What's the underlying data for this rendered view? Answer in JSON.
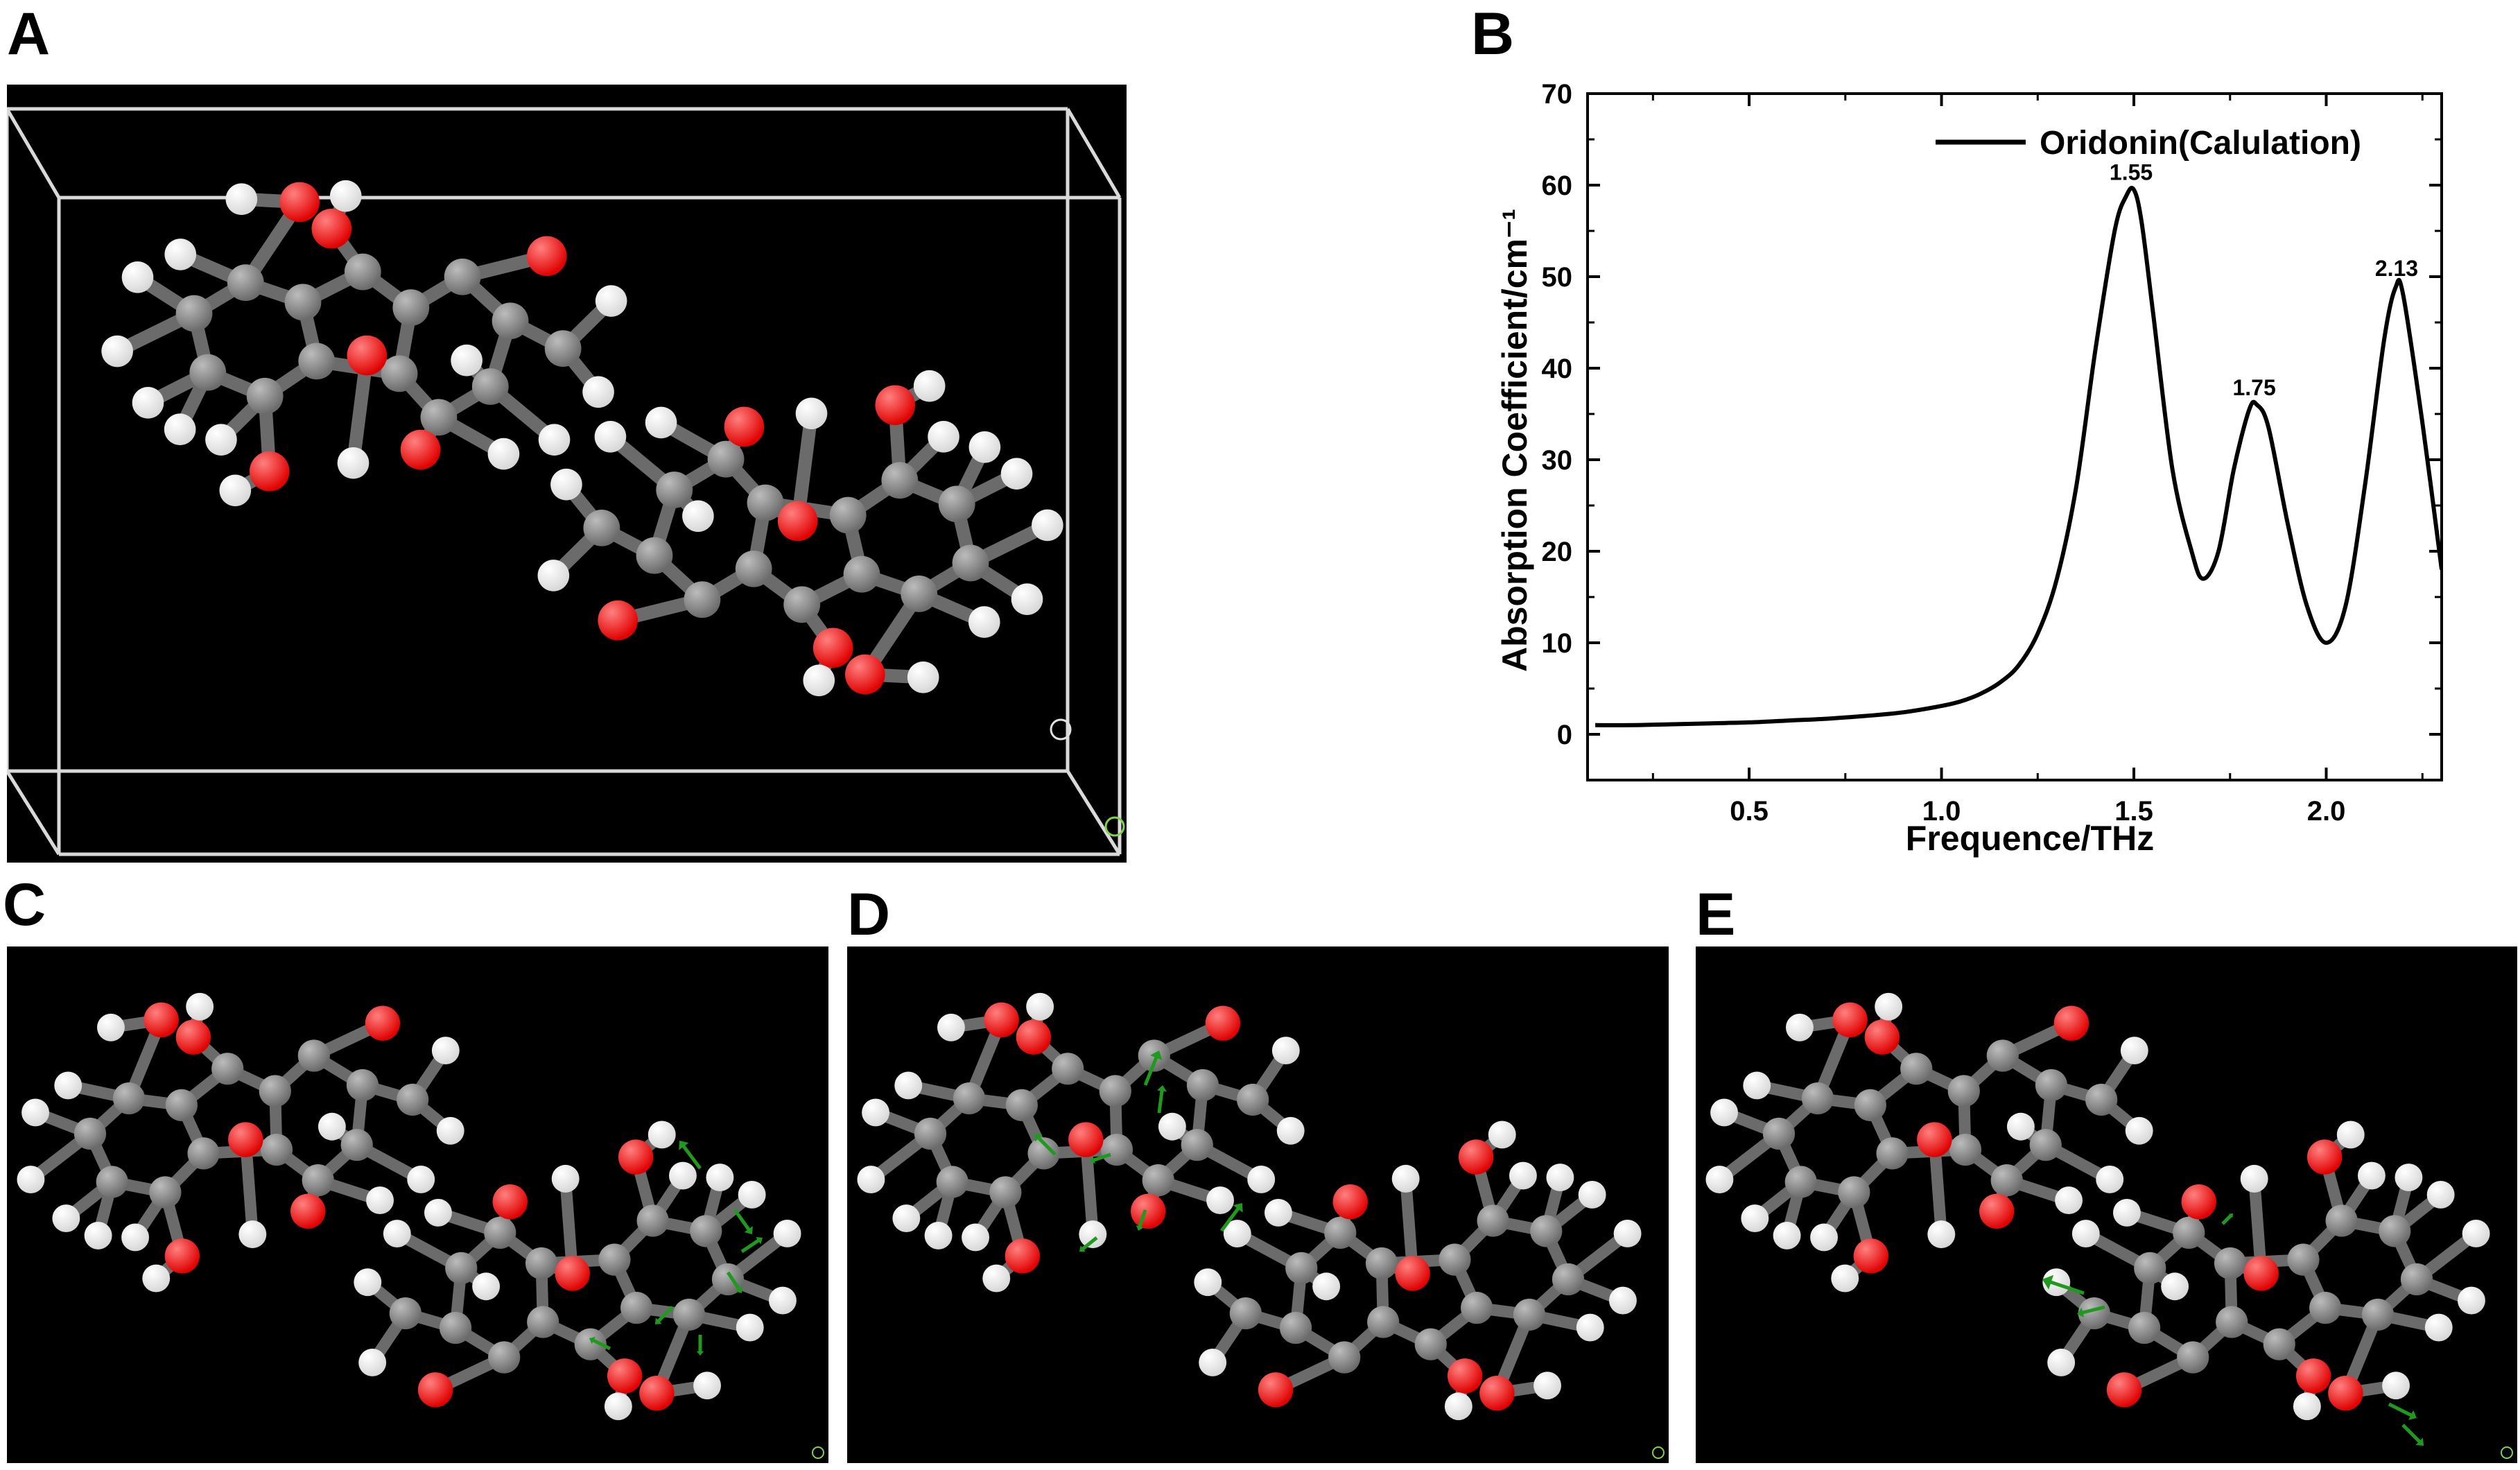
{
  "panels": {
    "a_label": "A",
    "b_label": "B",
    "c_label": "C",
    "d_label": "D",
    "e_label": "E"
  },
  "colors": {
    "carbon": "#6b6b6b",
    "oxygen": "#e00000",
    "hydrogen": "#f2f2f2",
    "bond": "#6b6b6b",
    "box": "#d9d9d9",
    "vector": "#1f9a1f",
    "scene_bg": "#000000",
    "curve": "#000000"
  },
  "chart_data": {
    "type": "line",
    "title": "",
    "xlabel": "Frequence/THz",
    "ylabel": "Absorption Coefficient/cm⁻¹",
    "xlim": [
      0.08,
      2.3
    ],
    "ylim": [
      -5,
      70
    ],
    "xticks": [
      "0.5",
      "1.0",
      "1.5",
      "2.0"
    ],
    "xtick_values": [
      0.5,
      1.0,
      1.5,
      2.0
    ],
    "yticks": [
      "0",
      "10",
      "20",
      "30",
      "40",
      "50",
      "60",
      "70"
    ],
    "ytick_values": [
      0,
      10,
      20,
      30,
      40,
      50,
      60,
      70
    ],
    "legend_position": "top-right",
    "series": [
      {
        "name": "Oridonin(Calulation)",
        "x": [
          0.1,
          0.2,
          0.3,
          0.4,
          0.5,
          0.6,
          0.7,
          0.8,
          0.9,
          1.0,
          1.05,
          1.1,
          1.15,
          1.2,
          1.25,
          1.3,
          1.35,
          1.4,
          1.45,
          1.48,
          1.5,
          1.52,
          1.55,
          1.6,
          1.65,
          1.68,
          1.72,
          1.76,
          1.8,
          1.82,
          1.85,
          1.9,
          1.95,
          2.0,
          2.05,
          2.1,
          2.15,
          2.18,
          2.2,
          2.25,
          2.3
        ],
        "y": [
          1.0,
          1.0,
          1.1,
          1.2,
          1.3,
          1.5,
          1.7,
          2.0,
          2.4,
          3.1,
          3.6,
          4.4,
          5.6,
          7.5,
          11.0,
          17.0,
          27.0,
          42.0,
          55.0,
          58.8,
          59.5,
          56.0,
          46.0,
          29.0,
          20.0,
          17.0,
          20.0,
          29.0,
          35.5,
          36.0,
          33.5,
          23.0,
          14.0,
          10.0,
          14.0,
          27.0,
          43.0,
          48.8,
          48.0,
          34.0,
          18.0
        ]
      }
    ],
    "annotations": [
      {
        "text": "1.55",
        "x": 1.5,
        "y": 59.5
      },
      {
        "text": "1.75",
        "x": 1.82,
        "y": 36.0
      },
      {
        "text": "2.13",
        "x": 2.19,
        "y": 49.0
      }
    ]
  }
}
